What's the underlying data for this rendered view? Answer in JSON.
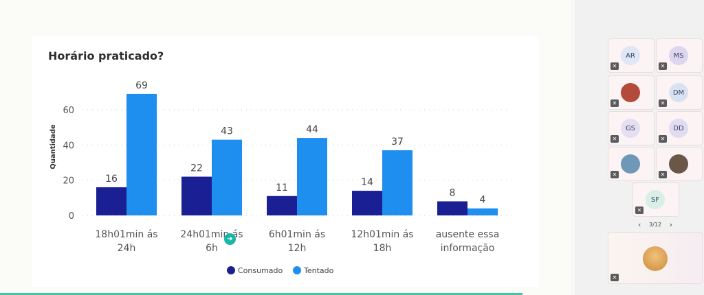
{
  "chart_data": {
    "type": "bar",
    "title": "Horário praticado?",
    "ylabel": "Quantidade",
    "xlabel": "",
    "ylim": [
      0,
      70
    ],
    "yticks": [
      0,
      20,
      40,
      60
    ],
    "grid": true,
    "legend_position": "bottom",
    "categories": [
      [
        "18h01min ás",
        "24h"
      ],
      [
        "24h01min ás",
        "6h"
      ],
      [
        "6h01min ás",
        "12h"
      ],
      [
        "12h01min ás",
        "18h"
      ],
      [
        "ausente essa",
        "informação"
      ]
    ],
    "series": [
      {
        "name": "Consumado",
        "color": "#1a1f93",
        "values": [
          16,
          22,
          11,
          14,
          8
        ]
      },
      {
        "name": "Tentado",
        "color": "#1e8fef",
        "values": [
          69,
          43,
          44,
          37,
          4
        ]
      }
    ]
  },
  "participants": [
    {
      "initials": "AR",
      "avatar_color": "#dfe6f5"
    },
    {
      "initials": "MS",
      "avatar_color": "#ded6ef"
    },
    {
      "initials": "",
      "avatar_color": "#b44a3a",
      "photo": true
    },
    {
      "initials": "DM",
      "avatar_color": "#d9e2f1"
    },
    {
      "initials": "GS",
      "avatar_color": "#e5dff1"
    },
    {
      "initials": "DD",
      "avatar_color": "#e2dcf0"
    },
    {
      "initials": "",
      "avatar_color": "#6e97b8",
      "photo": true
    },
    {
      "initials": "",
      "avatar_color": "#6b5648",
      "photo": true
    },
    {
      "initials": "SF",
      "avatar_color": "#d7efe4"
    }
  ],
  "pager": {
    "prev": "‹",
    "label": "3/12",
    "next": "›"
  },
  "mic_icon": "mic-off-icon"
}
